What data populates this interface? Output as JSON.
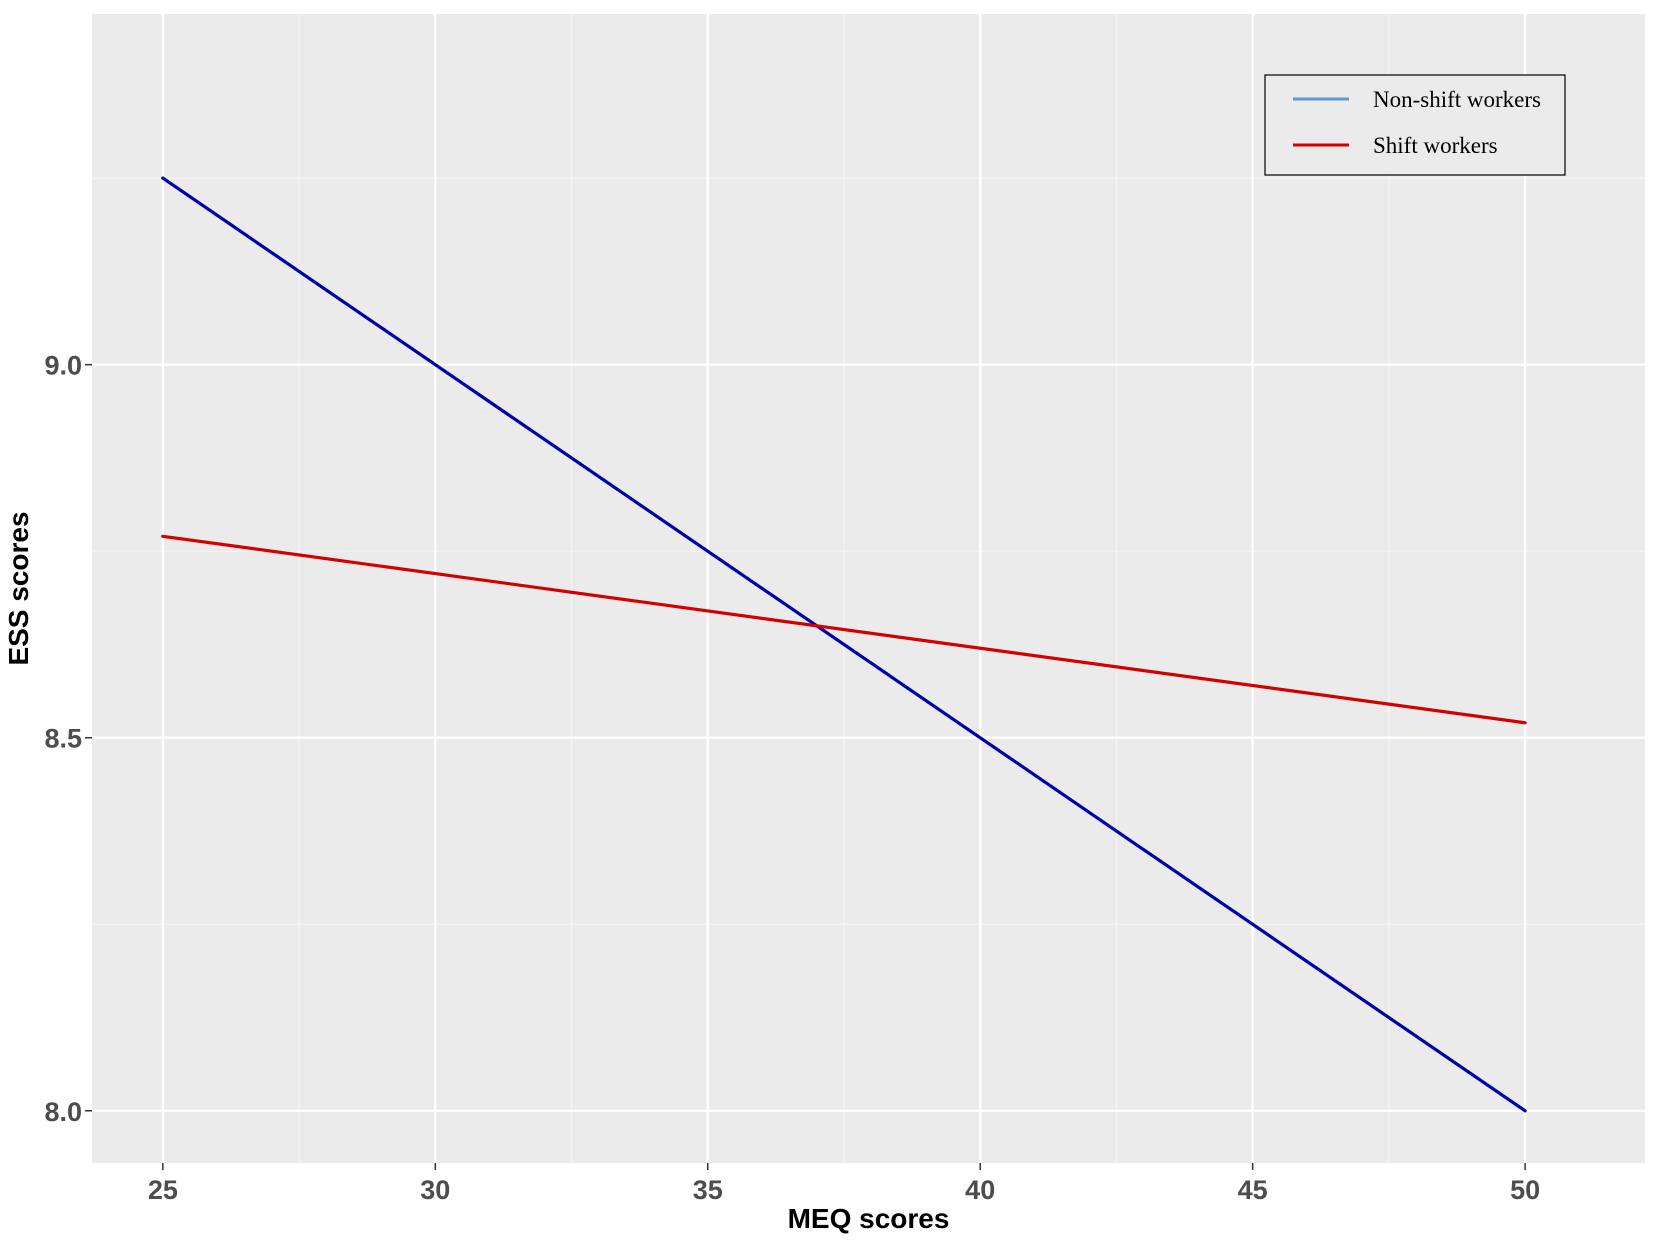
{
  "chart_data": {
    "type": "line",
    "title": "",
    "xlabel": "MEQ scores",
    "ylabel": "ESS scores",
    "xlim": [
      23.7,
      52.2
    ],
    "ylim": [
      7.93,
      9.47
    ],
    "x_ticks": [
      25,
      30,
      35,
      40,
      45,
      50
    ],
    "x_tick_labels": [
      "25",
      "30",
      "35",
      "40",
      "45",
      "50"
    ],
    "y_ticks": [
      8.0,
      8.5,
      9.0
    ],
    "y_tick_labels": [
      "8.0",
      "8.5",
      "9.0"
    ],
    "grid": true,
    "legend_position": "top-right",
    "series": [
      {
        "name": "Non-shift workers",
        "legend_color": "#5b9bd5",
        "line_color": "#0000aa",
        "x": [
          25,
          50
        ],
        "y": [
          9.25,
          8.0
        ]
      },
      {
        "name": "Shift workers",
        "legend_color": "#d40000",
        "line_color": "#d40000",
        "x": [
          25,
          50
        ],
        "y": [
          8.77,
          8.52
        ]
      }
    ]
  },
  "colors": {
    "panel_background": "#ebebeb",
    "grid_major": "#ffffff",
    "grid_minor": "#f5f5f5",
    "tick_text": "#4d4d4d"
  }
}
